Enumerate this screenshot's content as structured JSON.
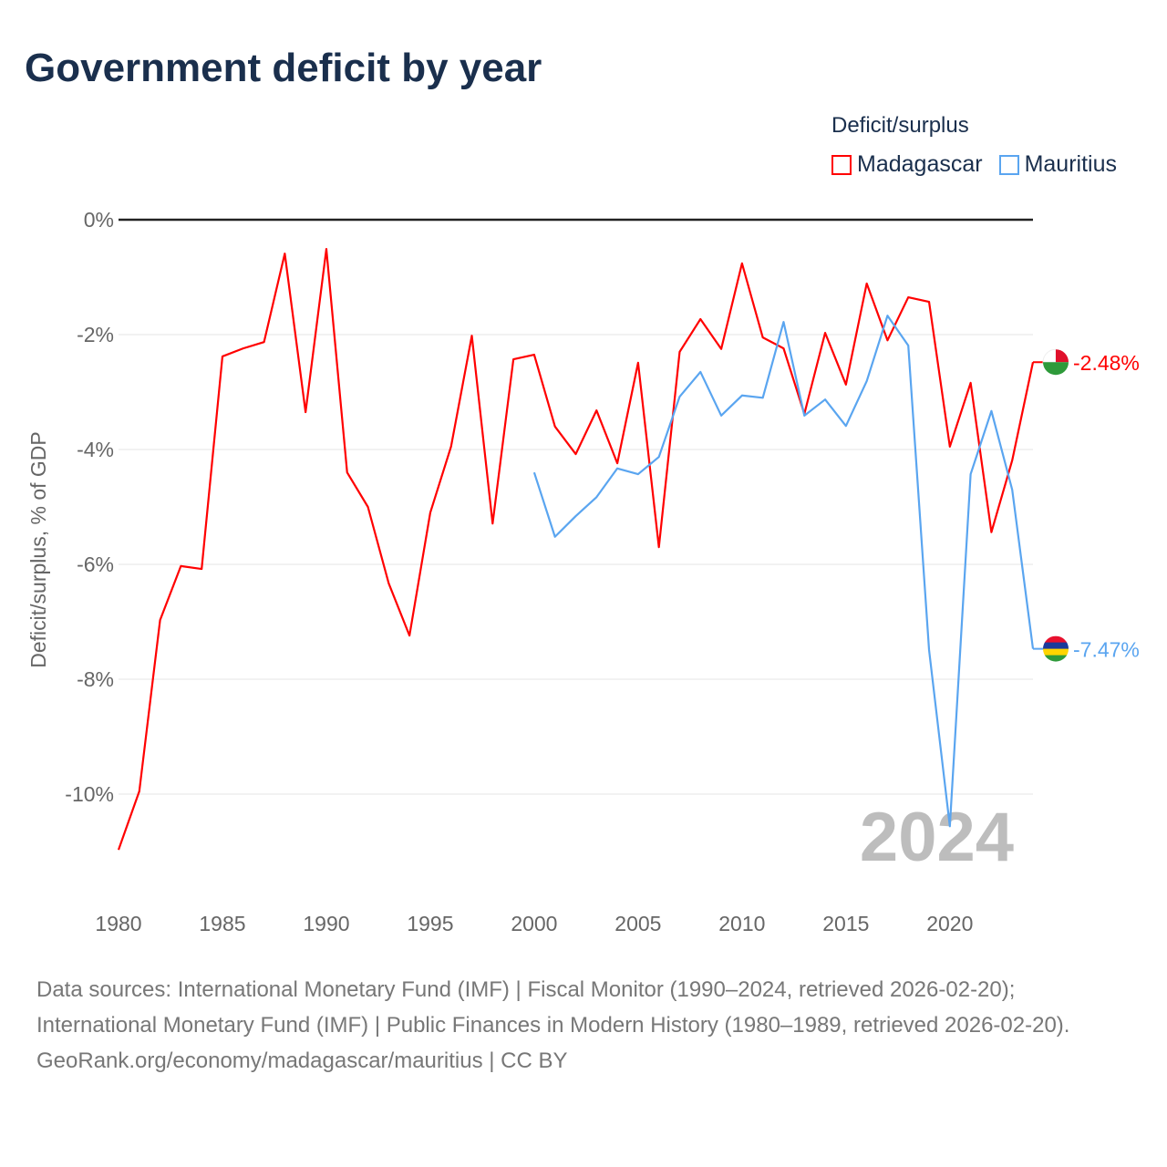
{
  "title": "Government deficit by year",
  "legend": {
    "title": "Deficit/surplus",
    "items": [
      {
        "label": "Madagascar",
        "color": "#ff0000"
      },
      {
        "label": "Mauritius",
        "color": "#5aa5f0"
      }
    ]
  },
  "year_watermark": "2024",
  "sources": {
    "line1": "Data sources: International Monetary Fund (IMF) | Fiscal Monitor (1990–2024, retrieved 2026-02-20); International Monetary Fund (IMF) | Public Finances in Modern History (1980–1989, retrieved 2026-02-20).",
    "line2": "GeoRank.org/economy/madagascar/mauritius | CC BY"
  },
  "chart_data": {
    "type": "line",
    "title": "Government deficit by year",
    "xlabel": "",
    "ylabel": "Deficit/surplus, % of GDP",
    "xlim": [
      1980,
      2024
    ],
    "ylim": [
      -11.3,
      0
    ],
    "xticks": [
      1980,
      1985,
      1990,
      1995,
      2000,
      2005,
      2010,
      2015,
      2020
    ],
    "yticks": [
      0,
      -2,
      -4,
      -6,
      -8,
      -10
    ],
    "ytick_labels": [
      "0%",
      "-2%",
      "-4%",
      "-6%",
      "-8%",
      "-10%"
    ],
    "grid": true,
    "legend_position": "top-right",
    "series": [
      {
        "name": "Madagascar",
        "color": "#ff0000",
        "end_label": "-2.48%",
        "x_start": 1980,
        "values": [
          -10.97,
          -9.95,
          -6.97,
          -6.03,
          -6.08,
          -2.38,
          -2.24,
          -2.13,
          -0.59,
          -3.35,
          -0.51,
          -4.4,
          -5.0,
          -6.33,
          -7.24,
          -5.1,
          -3.95,
          -2.02,
          -5.29,
          -2.43,
          -2.35,
          -3.6,
          -4.08,
          -3.32,
          -4.24,
          -2.49,
          -5.7,
          -2.3,
          -1.73,
          -2.25,
          -0.76,
          -2.05,
          -2.24,
          -3.38,
          -1.97,
          -2.87,
          -1.11,
          -2.1,
          -1.35,
          -1.43,
          -3.95,
          -2.84,
          -5.44,
          -4.19,
          -2.48
        ]
      },
      {
        "name": "Mauritius",
        "color": "#5aa5f0",
        "end_label": "-7.47%",
        "x_start": 2000,
        "values": [
          -4.4,
          -5.52,
          -5.16,
          -4.83,
          -4.33,
          -4.43,
          -4.13,
          -3.08,
          -2.65,
          -3.41,
          -3.06,
          -3.1,
          -1.78,
          -3.41,
          -3.13,
          -3.59,
          -2.81,
          -1.67,
          -2.19,
          -7.49,
          -10.56,
          -4.43,
          -3.33,
          -4.7,
          -7.47
        ]
      }
    ]
  }
}
